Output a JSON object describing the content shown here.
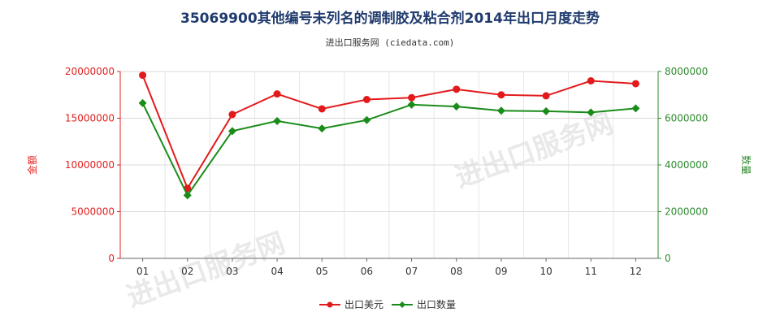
{
  "chart_data": {
    "type": "line",
    "title": "35069900其他编号未列名的调制胶及粘合剂2014年出口月度走势",
    "subtitle": "进出口服务网 (ciedata.com)",
    "watermark": "进出口服务网",
    "categories": [
      "01",
      "02",
      "03",
      "04",
      "05",
      "06",
      "07",
      "08",
      "09",
      "10",
      "11",
      "12"
    ],
    "y_left": {
      "label": "金额",
      "ticks": [
        "0",
        "5000000",
        "10000000",
        "15000000",
        "20000000"
      ],
      "range": [
        0,
        20000000
      ]
    },
    "y_right": {
      "label": "数量",
      "ticks": [
        "0",
        "2000000",
        "4000000",
        "6000000",
        "8000000"
      ],
      "range": [
        0,
        8000000
      ]
    },
    "series": [
      {
        "name": "出口美元",
        "axis": "left",
        "color": "#e31a1c",
        "values": [
          19600000,
          7500000,
          15400000,
          17600000,
          16000000,
          17000000,
          17200000,
          18100000,
          17500000,
          17400000,
          19000000,
          18700000
        ]
      },
      {
        "name": "出口数量",
        "axis": "right",
        "color": "#1a8c1a",
        "values": [
          6650000,
          2700000,
          5450000,
          5880000,
          5560000,
          5920000,
          6580000,
          6500000,
          6320000,
          6300000,
          6250000,
          6420000
        ]
      }
    ],
    "grid": true,
    "legend_position": "bottom"
  }
}
